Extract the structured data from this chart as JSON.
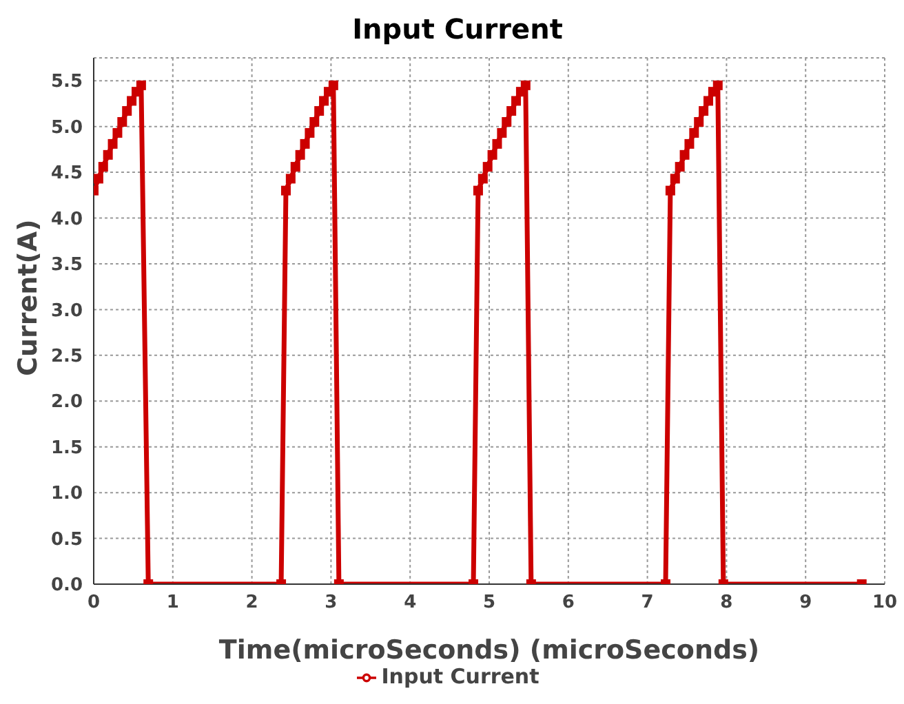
{
  "chart_data": {
    "type": "line",
    "title": "Input Current",
    "xlabel": "Time(microSeconds) (microSeconds)",
    "ylabel": "Current(A)",
    "x": [
      0,
      0.06,
      0.12,
      0.18,
      0.24,
      0.3,
      0.36,
      0.42,
      0.48,
      0.54,
      0.6,
      0.69,
      2.37,
      2.43,
      2.49,
      2.55,
      2.61,
      2.67,
      2.73,
      2.79,
      2.85,
      2.91,
      2.97,
      3.03,
      3.1,
      4.8,
      4.86,
      4.92,
      4.98,
      5.04,
      5.1,
      5.16,
      5.22,
      5.28,
      5.34,
      5.4,
      5.46,
      5.53,
      7.23,
      7.29,
      7.35,
      7.41,
      7.47,
      7.53,
      7.59,
      7.65,
      7.71,
      7.77,
      7.83,
      7.89,
      7.96,
      9.71
    ],
    "series": [
      {
        "name": "Input Current",
        "color": "#cc0000",
        "values": [
          4.3,
          4.43,
          4.56,
          4.69,
          4.81,
          4.93,
          5.05,
          5.17,
          5.28,
          5.38,
          5.45,
          0,
          0,
          4.3,
          4.43,
          4.56,
          4.69,
          4.81,
          4.93,
          5.05,
          5.17,
          5.28,
          5.38,
          5.45,
          0,
          0,
          4.3,
          4.43,
          4.56,
          4.69,
          4.81,
          4.93,
          5.05,
          5.17,
          5.28,
          5.38,
          5.45,
          0,
          0,
          4.3,
          4.43,
          4.56,
          4.69,
          4.81,
          4.93,
          5.05,
          5.17,
          5.28,
          5.38,
          5.45,
          0,
          0
        ]
      }
    ],
    "xlim": [
      0,
      10
    ],
    "xticks": [
      0,
      1,
      2,
      3,
      4,
      5,
      6,
      7,
      8,
      9,
      10
    ],
    "ylim": [
      0,
      5.75
    ],
    "yticks": [
      {
        "value": 0,
        "label": "0.0"
      },
      0.5,
      {
        "value": 1,
        "label": "1.0"
      },
      1.5,
      {
        "value": 2,
        "label": "2.0"
      },
      2.5,
      {
        "value": 3,
        "label": "3.0"
      },
      3.5,
      {
        "value": 4,
        "label": "4.0"
      },
      4.5,
      {
        "value": 5,
        "label": "5.0"
      },
      5.5
    ],
    "grid": true,
    "legend": "bottom",
    "marker": "square",
    "line_style": "solid"
  }
}
